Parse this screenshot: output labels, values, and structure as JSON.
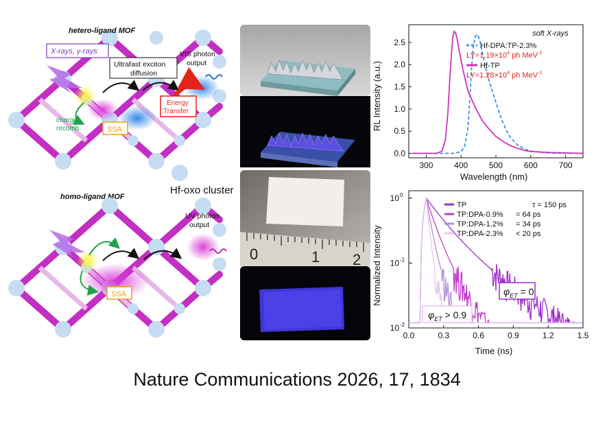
{
  "mof": {
    "hetero_label": "hetero-ligand  MOF",
    "homo_label": "homo-ligand  MOF",
    "xray_label": "X-rays, γ-rays",
    "exciton_label_line1": "Ultrafast exciton",
    "exciton_label_line2": "diffusion",
    "vis_output_line1": "VIS photon",
    "vis_output_line2": "output",
    "uv_output_line1": "UV photon",
    "uv_output_line2": "output",
    "energy_transfer_line1": "Energy",
    "energy_transfer_line2": "Transfer",
    "charge_line1": "charge",
    "charge_line2": "recomb.",
    "ssa": "SSA",
    "cluster_label": "Hf-oxo cluster",
    "colors": {
      "ligand": "#c22fc2",
      "node": "#c6dcf3",
      "transfer": "#e3241b",
      "recomb": "#1fa34a",
      "ssa": "#f39a1d",
      "acceptor": "#1f6fd0"
    }
  },
  "photos": {
    "ruler_digits": [
      "0",
      "1",
      "2"
    ]
  },
  "chart_data": [
    {
      "type": "line",
      "title": "soft X-rays",
      "xlabel": "Wavelength (nm)",
      "ylabel": "RL Intensity (a.u.)",
      "xlim": [
        250,
        750
      ],
      "ylim": [
        -0.1,
        2.9
      ],
      "xticks": [
        300,
        400,
        500,
        600,
        700
      ],
      "yticks": [
        0.0,
        0.5,
        1.0,
        1.5,
        2.0,
        2.5
      ],
      "ytick_labels": [
        "0.0",
        "0.5",
        "1.0",
        "1.5",
        "2.0",
        "2.5"
      ],
      "series": [
        {
          "name": "Hf-DPA:TP-2.3%",
          "annotation_prefix": "LY=1.19×10",
          "annotation_exp": "4",
          "annotation_suffix": " ph MeV",
          "annotation_unit_exp": "-1",
          "color": "#3b8fe0",
          "dash": true,
          "x": [
            260,
            380,
            400,
            410,
            420,
            425,
            430,
            435,
            440,
            445,
            450,
            455,
            460,
            470,
            480,
            490,
            500,
            510,
            520,
            530,
            540,
            560,
            580,
            600,
            650,
            700,
            750
          ],
          "y": [
            0.0,
            0.0,
            0.04,
            0.15,
            0.6,
            1.2,
            1.9,
            2.4,
            2.62,
            2.68,
            2.63,
            2.5,
            2.3,
            1.95,
            1.65,
            1.4,
            1.15,
            0.9,
            0.7,
            0.52,
            0.38,
            0.2,
            0.1,
            0.05,
            0.01,
            0.0,
            0.0
          ]
        },
        {
          "name": "Hf-TP",
          "annotation_prefix": "LY=1.28×10",
          "annotation_exp": "4",
          "annotation_suffix": " ph MeV",
          "annotation_unit_exp": "-1",
          "color": "#cc33b8",
          "dash": false,
          "x": [
            260,
            330,
            345,
            355,
            362,
            368,
            372,
            376,
            380,
            384,
            388,
            395,
            405,
            420,
            440,
            460,
            480,
            500,
            520,
            540,
            560,
            580,
            600,
            650,
            700,
            750
          ],
          "y": [
            0.0,
            0.0,
            0.05,
            0.3,
            0.9,
            1.7,
            2.2,
            2.6,
            2.75,
            2.72,
            2.6,
            2.3,
            1.9,
            1.4,
            1.05,
            0.75,
            0.55,
            0.38,
            0.27,
            0.18,
            0.12,
            0.07,
            0.04,
            0.02,
            0.01,
            0.0
          ]
        }
      ]
    },
    {
      "type": "line",
      "xlabel": "Time (ns)",
      "ylabel": "Normalized Intensity",
      "xlim": [
        0.0,
        1.5
      ],
      "ylim": [
        0.01,
        1.3
      ],
      "yscale": "log",
      "xticks": [
        0.0,
        0.3,
        0.6,
        0.9,
        1.2,
        1.5
      ],
      "xtick_labels": [
        "0.0",
        "0.3",
        "0.6",
        "0.9",
        "1.2",
        "1.5"
      ],
      "ytick_labels": [
        {
          "base": "10",
          "exp": "0",
          "value": 1
        },
        {
          "base": "10",
          "exp": "-1",
          "value": 0.1
        },
        {
          "base": "10",
          "exp": "-2",
          "value": 0.01
        }
      ],
      "annotation_high": {
        "symbol": "φ",
        "sub": "ET",
        "rest": " = 0"
      },
      "annotation_low": {
        "symbol": "φ",
        "sub": "ET",
        "rest": " > 0.9"
      },
      "series": [
        {
          "name": "TP",
          "tau": "τ = 150 ps",
          "lifetime_ps": 150,
          "color": "#9b2dc9"
        },
        {
          "name": "TP:DPA-0.9%",
          "tau": "= 64 ps",
          "lifetime_ps": 64,
          "color": "#c23ccc"
        },
        {
          "name": "TP:DPA-1.2%",
          "tau": "= 34 ps",
          "lifetime_ps": 34,
          "color": "#b48ad8"
        },
        {
          "name": "TP:DPA-2.3%",
          "tau": "< 20 ps",
          "lifetime_ps": 20,
          "color": "#e7c6ef"
        }
      ]
    }
  ],
  "caption": "Nature Communications 2026, 17, 1834"
}
